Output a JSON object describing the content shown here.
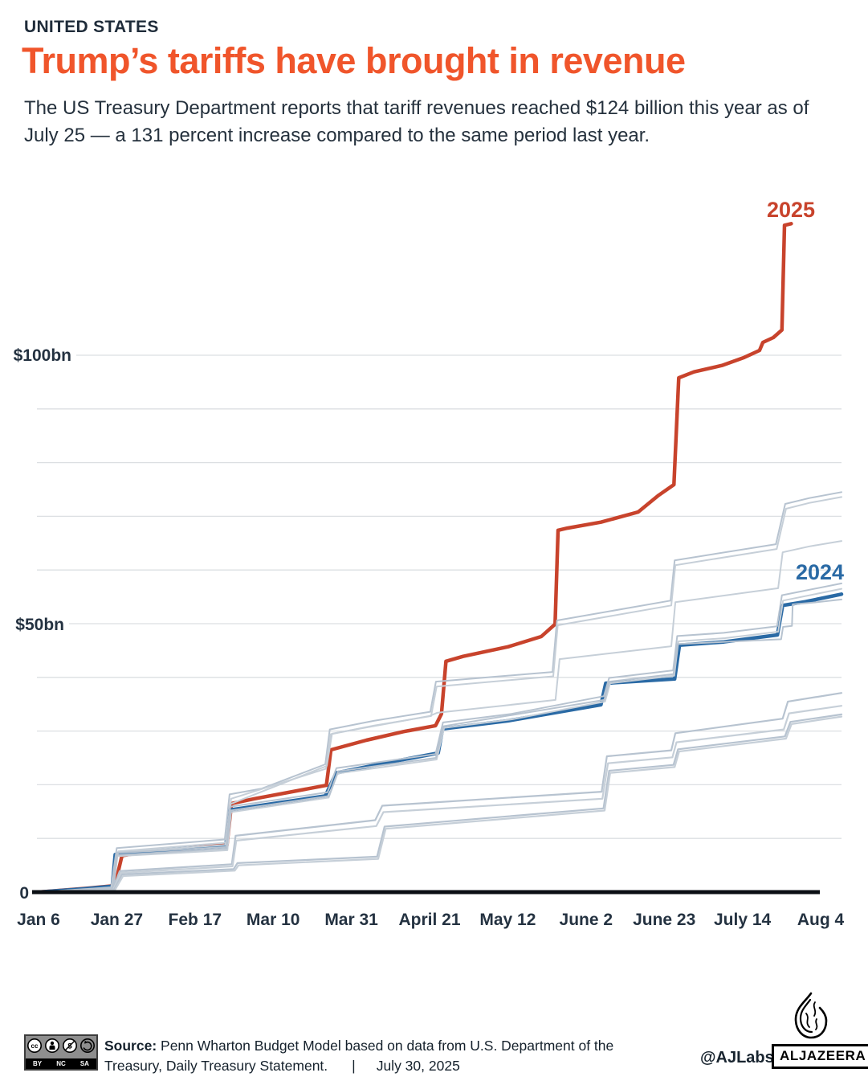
{
  "header": {
    "kicker": "UNITED STATES",
    "title": "Trump’s tariffs have brought in revenue",
    "subtitle": "The US Treasury Department reports that tariff revenues reached $124 billion this year as of July 25 — a 131 percent increase compared to the same period last year."
  },
  "colors": {
    "accent_orange": "#f0552b",
    "line_2025": "#c8432c",
    "line_2024": "#2a6aa5",
    "gray_line_dark": "#b7c3d0",
    "gray_line_light": "#c6cfd8",
    "text_navy": "#25313d",
    "grid": "#dcdfe2",
    "axis": "#0b0f14"
  },
  "annotations": {
    "label_2025": "2025",
    "label_2024": "2024"
  },
  "chart_data": {
    "type": "line",
    "title": "Trump’s tariffs have brought in revenue",
    "xlabel": "",
    "ylabel": "",
    "x_unit": "days since Jan 6",
    "y_unit": "USD billions (cumulative tariff revenue)",
    "ylim": [
      0,
      130
    ],
    "grid": "horizontal",
    "legend_position": "inline-labels",
    "x_tick_labels": [
      "Jan 6",
      "Jan 27",
      "Feb 17",
      "Mar 10",
      "Mar 31",
      "April 21",
      "May 12",
      "June 2",
      "June 23",
      "July 14",
      "Aug 4"
    ],
    "x_tick_days": [
      0,
      21,
      42,
      63,
      84,
      105,
      126,
      147,
      168,
      189,
      210
    ],
    "y_tick_labels": {
      "zero": "0",
      "fifty": "$50bn",
      "hundred": "$100bn"
    },
    "y_gridlines_bn": [
      10,
      20,
      30,
      40,
      50,
      60,
      70,
      80,
      90,
      100
    ],
    "series": [
      {
        "id": "y2025",
        "label": "2025",
        "color": "#c8432c",
        "width": 4.5,
        "points": [
          [
            0,
            0
          ],
          [
            13,
            0.7
          ],
          [
            20.5,
            1.2
          ],
          [
            22.4,
            6.8
          ],
          [
            27,
            7.3
          ],
          [
            50.6,
            8.8
          ],
          [
            51.8,
            16.5
          ],
          [
            58,
            17.4
          ],
          [
            77.3,
            19.9
          ],
          [
            78.5,
            26.5
          ],
          [
            88,
            28.3
          ],
          [
            98,
            29.9
          ],
          [
            106.6,
            31.0
          ],
          [
            108.2,
            33.2
          ],
          [
            109.4,
            43.0
          ],
          [
            114,
            43.9
          ],
          [
            126.1,
            45.7
          ],
          [
            135,
            47.6
          ],
          [
            138.7,
            49.9
          ],
          [
            139.5,
            67.4
          ],
          [
            142,
            67.8
          ],
          [
            151,
            68.9
          ],
          [
            161,
            70.8
          ],
          [
            166.5,
            73.9
          ],
          [
            170.6,
            75.9
          ],
          [
            171.9,
            95.8
          ],
          [
            176,
            96.9
          ],
          [
            183.5,
            98.1
          ],
          [
            189.5,
            99.6
          ],
          [
            193.6,
            100.9
          ],
          [
            194.5,
            102.4
          ],
          [
            197.3,
            103.3
          ],
          [
            199.6,
            104.7
          ],
          [
            200.3,
            124.2
          ],
          [
            202.1,
            124.5
          ]
        ]
      },
      {
        "id": "y2024",
        "label": "2024",
        "color": "#2a6aa5",
        "width": 4.5,
        "points": [
          [
            0,
            0
          ],
          [
            12,
            0.6
          ],
          [
            19.8,
            1.1
          ],
          [
            20.6,
            7.0
          ],
          [
            26,
            7.5
          ],
          [
            50.3,
            8.6
          ],
          [
            51.3,
            15.3
          ],
          [
            63,
            16.5
          ],
          [
            77,
            17.9
          ],
          [
            79.9,
            22.2
          ],
          [
            95,
            24.3
          ],
          [
            107.3,
            25.9
          ],
          [
            108.5,
            30.4
          ],
          [
            126,
            31.9
          ],
          [
            151,
            34.9
          ],
          [
            152.3,
            38.9
          ],
          [
            170.8,
            39.7
          ],
          [
            172.1,
            46.0
          ],
          [
            184,
            46.6
          ],
          [
            198.4,
            47.9
          ],
          [
            199.8,
            53.4
          ],
          [
            206,
            54.1
          ],
          [
            215.6,
            55.5
          ]
        ]
      },
      {
        "id": "prev-a1",
        "label": "",
        "color": "#b7c3d0",
        "width": 2,
        "points": [
          [
            0,
            0
          ],
          [
            19.5,
            0.9
          ],
          [
            21,
            8.2
          ],
          [
            50,
            9.8
          ],
          [
            51.3,
            18.2
          ],
          [
            60,
            19.3
          ],
          [
            77,
            23.8
          ],
          [
            78.2,
            30.3
          ],
          [
            90,
            31.9
          ],
          [
            105.2,
            33.6
          ],
          [
            106.7,
            39.2
          ],
          [
            138,
            41.0
          ],
          [
            139.2,
            50.6
          ],
          [
            169.7,
            54.3
          ],
          [
            170.8,
            61.8
          ],
          [
            198,
            64.8
          ],
          [
            200.5,
            72.3
          ],
          [
            207,
            73.4
          ],
          [
            215.6,
            74.5
          ]
        ]
      },
      {
        "id": "prev-a2",
        "label": "",
        "color": "#c6cfd8",
        "width": 2,
        "points": [
          [
            0,
            0
          ],
          [
            19.7,
            0.8
          ],
          [
            21.4,
            7.6
          ],
          [
            50.4,
            9.2
          ],
          [
            51.7,
            17.4
          ],
          [
            77.2,
            23.0
          ],
          [
            78.4,
            29.4
          ],
          [
            90,
            31.0
          ],
          [
            105.4,
            32.8
          ],
          [
            106.9,
            38.3
          ],
          [
            138.2,
            40.2
          ],
          [
            139.4,
            49.7
          ],
          [
            169.9,
            53.4
          ],
          [
            171,
            60.9
          ],
          [
            198.2,
            63.9
          ],
          [
            200.7,
            71.4
          ],
          [
            207,
            72.5
          ],
          [
            215.6,
            73.6
          ]
        ]
      },
      {
        "id": "prev-b",
        "label": "",
        "color": "#c6cfd8",
        "width": 2,
        "points": [
          [
            0,
            0
          ],
          [
            19.6,
            0.8
          ],
          [
            21.2,
            7.4
          ],
          [
            50.2,
            8.8
          ],
          [
            51.5,
            16.4
          ],
          [
            77.4,
            23.5
          ],
          [
            78.8,
            29.5
          ],
          [
            105,
            32.8
          ],
          [
            107,
            33.4
          ],
          [
            138.8,
            35.8
          ],
          [
            139.9,
            43.4
          ],
          [
            169.9,
            45.8
          ],
          [
            171,
            54.0
          ],
          [
            198.6,
            56.6
          ],
          [
            199.8,
            63.3
          ],
          [
            207,
            64.4
          ],
          [
            215.6,
            65.4
          ]
        ]
      },
      {
        "id": "prev-c1",
        "label": "",
        "color": "#b7c3d0",
        "width": 2,
        "points": [
          [
            0,
            0
          ],
          [
            19.8,
            0.8
          ],
          [
            20.9,
            7.3
          ],
          [
            50.4,
            8.4
          ],
          [
            51.4,
            15.9
          ],
          [
            77.6,
            18.6
          ],
          [
            80,
            23.1
          ],
          [
            106.6,
            25.7
          ],
          [
            108.6,
            31.6
          ],
          [
            127,
            33.2
          ],
          [
            151.8,
            36.5
          ],
          [
            153.2,
            39.9
          ],
          [
            170.4,
            41.3
          ],
          [
            171.5,
            47.7
          ],
          [
            184,
            48.3
          ],
          [
            198.3,
            49.5
          ],
          [
            199.6,
            55.3
          ],
          [
            215.6,
            57.5
          ]
        ]
      },
      {
        "id": "prev-c2",
        "label": "",
        "color": "#c6cfd8",
        "width": 2,
        "points": [
          [
            0,
            0
          ],
          [
            20.1,
            0.7
          ],
          [
            21.2,
            6.7
          ],
          [
            50.7,
            7.8
          ],
          [
            51.7,
            14.9
          ],
          [
            77.9,
            17.6
          ],
          [
            80.3,
            22.1
          ],
          [
            106.9,
            24.7
          ],
          [
            108.9,
            30.6
          ],
          [
            127.3,
            32.2
          ],
          [
            152.1,
            35.5
          ],
          [
            153.5,
            38.9
          ],
          [
            170.7,
            40.3
          ],
          [
            171.8,
            46.7
          ],
          [
            184.3,
            47.3
          ],
          [
            198.6,
            48.5
          ],
          [
            199.9,
            54.3
          ],
          [
            215.6,
            56.5
          ]
        ]
      },
      {
        "id": "prev-d",
        "label": "",
        "color": "#b7c3d0",
        "width": 2,
        "points": [
          [
            0,
            0
          ],
          [
            20,
            0.7
          ],
          [
            21.1,
            6.9
          ],
          [
            50.5,
            8.1
          ],
          [
            51.6,
            15.2
          ],
          [
            78,
            17.9
          ],
          [
            80.4,
            22.5
          ],
          [
            106.7,
            25.0
          ],
          [
            108.7,
            30.9
          ],
          [
            151.9,
            35.8
          ],
          [
            153.3,
            39.2
          ],
          [
            170.5,
            40.6
          ],
          [
            171.6,
            46.2
          ],
          [
            199.4,
            47.1
          ],
          [
            199.9,
            49.4
          ],
          [
            202.3,
            49.6
          ],
          [
            202.5,
            53.6
          ],
          [
            209,
            54.0
          ],
          [
            215.6,
            54.5
          ]
        ]
      },
      {
        "id": "prev-e",
        "label": "",
        "color": "#b7c3d0",
        "width": 2.2,
        "points": [
          [
            0,
            0
          ],
          [
            19.9,
            0.5
          ],
          [
            21.8,
            3.9
          ],
          [
            51.9,
            5.2
          ],
          [
            52.9,
            10.5
          ],
          [
            90.4,
            13.4
          ],
          [
            92.3,
            16.1
          ],
          [
            151.2,
            18.7
          ],
          [
            152.6,
            25.3
          ],
          [
            169.9,
            26.4
          ],
          [
            171,
            29.6
          ],
          [
            199.8,
            32.3
          ],
          [
            201.2,
            35.5
          ],
          [
            215.6,
            37.1
          ]
        ]
      },
      {
        "id": "prev-f",
        "label": "",
        "color": "#c6cfd8",
        "width": 2.2,
        "points": [
          [
            0,
            0
          ],
          [
            20.1,
            0.5
          ],
          [
            22.1,
            3.6
          ],
          [
            52.1,
            4.8
          ],
          [
            53.1,
            9.6
          ],
          [
            90.7,
            12.3
          ],
          [
            92.6,
            14.9
          ],
          [
            151.4,
            17.4
          ],
          [
            152.9,
            24.0
          ],
          [
            170.2,
            25.1
          ],
          [
            171.3,
            27.9
          ],
          [
            200.1,
            30.3
          ],
          [
            201.5,
            33.3
          ],
          [
            215.6,
            34.7
          ]
        ]
      },
      {
        "id": "prev-g1",
        "label": "",
        "color": "#b7c3d0",
        "width": 2.2,
        "points": [
          [
            0,
            0
          ],
          [
            20.3,
            0.5
          ],
          [
            22.4,
            3.3
          ],
          [
            52.4,
            4.3
          ],
          [
            53.4,
            5.4
          ],
          [
            90.9,
            6.6
          ],
          [
            92.9,
            12.2
          ],
          [
            151.7,
            15.6
          ],
          [
            153.2,
            22.6
          ],
          [
            170.5,
            23.7
          ],
          [
            171.7,
            26.6
          ],
          [
            200.4,
            29.0
          ],
          [
            201.9,
            31.7
          ],
          [
            215.6,
            33.1
          ]
        ]
      },
      {
        "id": "prev-g2",
        "label": "",
        "color": "#c6cfd8",
        "width": 2.2,
        "points": [
          [
            0,
            0
          ],
          [
            20.5,
            0.4
          ],
          [
            22.7,
            3.0
          ],
          [
            52.7,
            4.0
          ],
          [
            53.7,
            5.0
          ],
          [
            91.2,
            6.2
          ],
          [
            93.2,
            11.8
          ],
          [
            152,
            15.2
          ],
          [
            153.5,
            22.2
          ],
          [
            170.8,
            23.3
          ],
          [
            172,
            26.2
          ],
          [
            200.7,
            28.6
          ],
          [
            202.2,
            31.3
          ],
          [
            215.6,
            32.7
          ]
        ]
      }
    ]
  },
  "footer": {
    "license": {
      "cc": "CC",
      "by": "BY",
      "nc": "NC",
      "sa": "SA"
    },
    "source_label": "Source:",
    "source_text": "Penn Wharton Budget Model based on data from U.S. Department of the Treasury, Daily Treasury Statement.",
    "divider": "|",
    "date": "July 30, 2025",
    "credit": "@AJLabs",
    "brand": "ALJAZEERA"
  }
}
